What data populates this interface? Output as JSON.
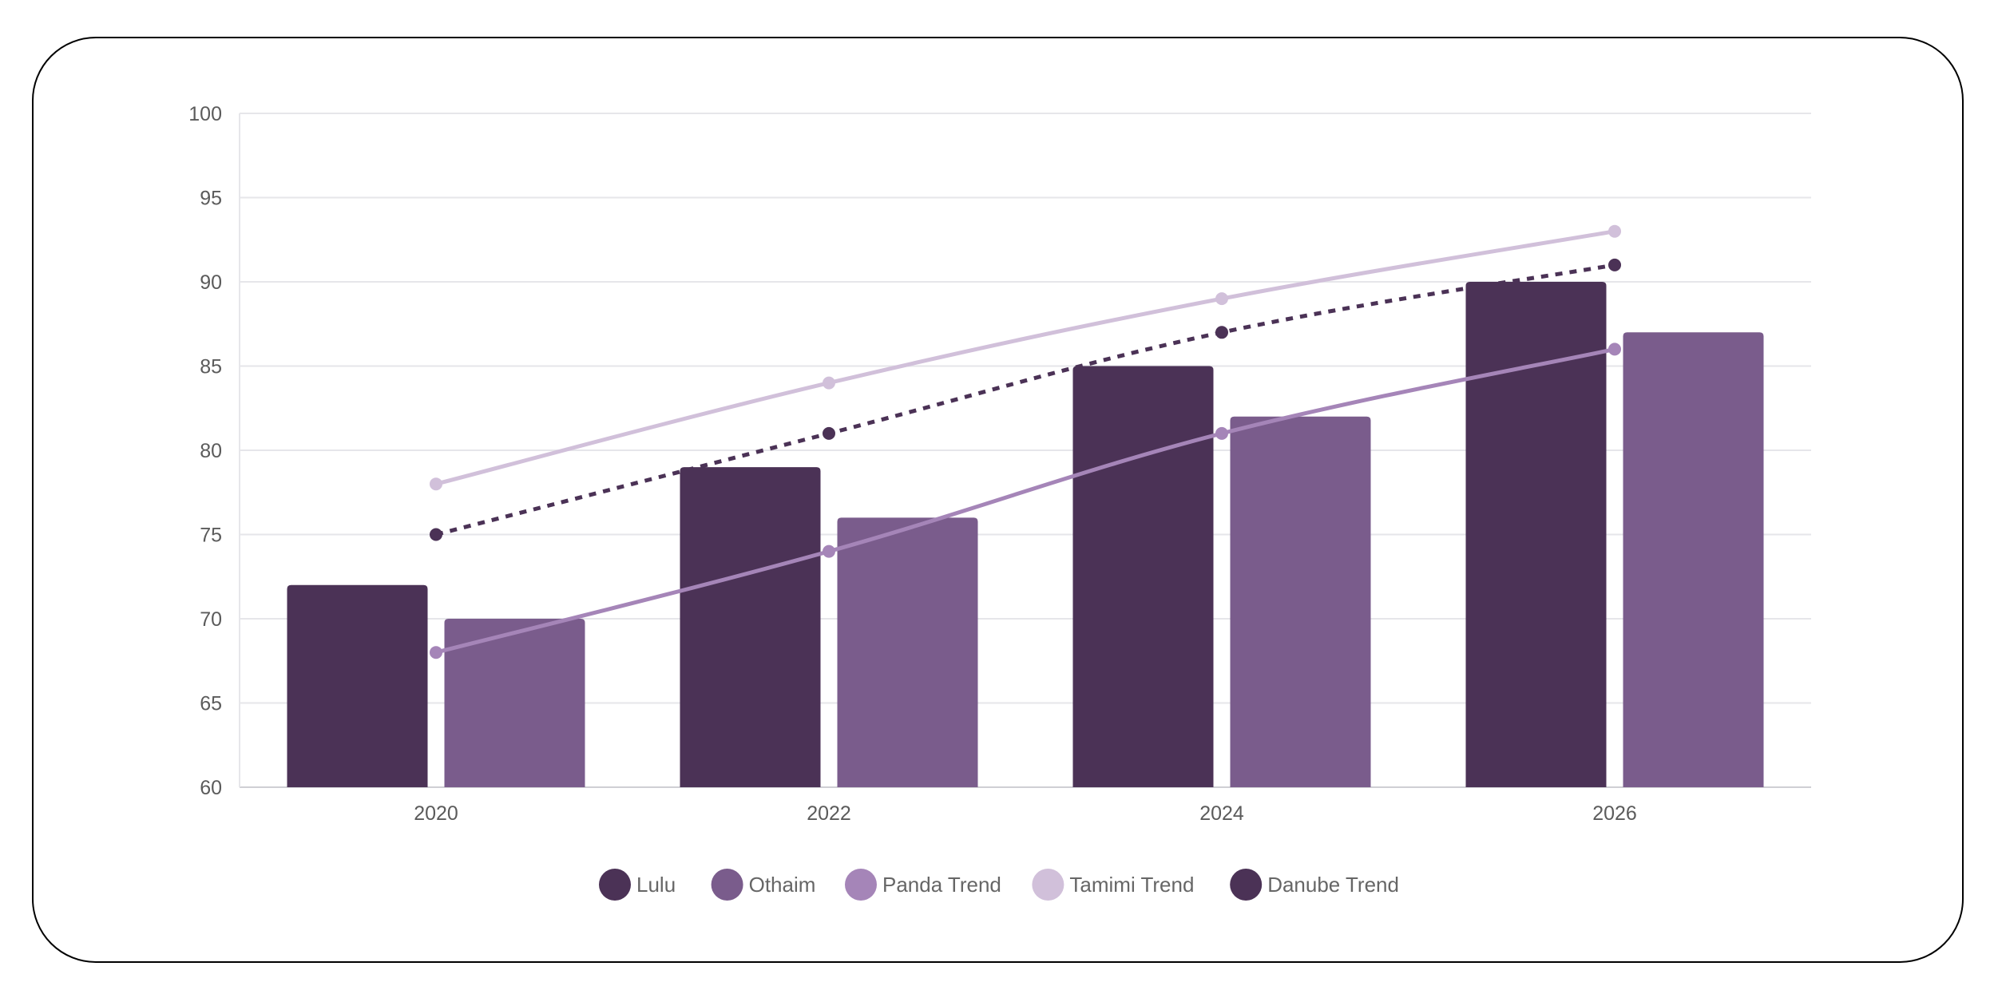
{
  "chart_data": {
    "type": "bar",
    "categories": [
      "2020",
      "2022",
      "2024",
      "2026"
    ],
    "ylim": [
      60,
      100
    ],
    "yticks": [
      60,
      65,
      70,
      75,
      80,
      85,
      90,
      95,
      100
    ],
    "grid": true,
    "legend_position": "bottom",
    "series": [
      {
        "name": "Lulu",
        "kind": "bar",
        "color": "#4b3256",
        "values": [
          72,
          79,
          85,
          90
        ]
      },
      {
        "name": "Othaim",
        "kind": "bar",
        "color": "#7a5c8c",
        "values": [
          70,
          76,
          82,
          87
        ]
      },
      {
        "name": "Panda Trend",
        "kind": "line",
        "dashed": false,
        "color": "#a585b8",
        "values": [
          68,
          74,
          81,
          86
        ]
      },
      {
        "name": "Tamimi Trend",
        "kind": "line",
        "dashed": false,
        "color": "#d1c0da",
        "values": [
          78,
          84,
          89,
          93
        ]
      },
      {
        "name": "Danube Trend",
        "kind": "line",
        "dashed": true,
        "color": "#4b3256",
        "values": [
          75,
          81,
          87,
          91
        ]
      }
    ]
  }
}
